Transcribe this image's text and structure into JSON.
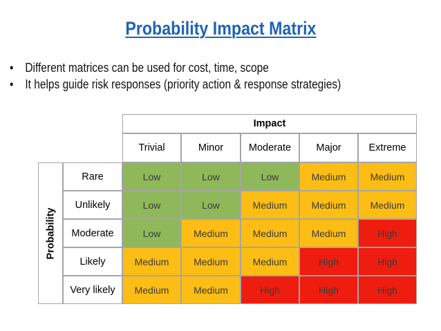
{
  "title": "Probability Impact Matrix",
  "bullets": [
    "Different matrices can be used for cost, time, scope",
    "It helps guide risk responses (priority action & response strategies)"
  ],
  "matrix": {
    "impact_label": "Impact",
    "probability_label": "Probability",
    "impact_levels": [
      "Trivial",
      "Minor",
      "Moderate",
      "Major",
      "Extreme"
    ],
    "probability_levels": [
      "Rare",
      "Unlikely",
      "Moderate",
      "Likely",
      "Very likely"
    ],
    "cells": [
      [
        "Low",
        "Low",
        "Low",
        "Medium",
        "Medium"
      ],
      [
        "Low",
        "Low",
        "Medium",
        "Medium",
        "Medium"
      ],
      [
        "Low",
        "Medium",
        "Medium",
        "Medium",
        "High"
      ],
      [
        "Medium",
        "Medium",
        "Medium",
        "High",
        "High"
      ],
      [
        "Medium",
        "Medium",
        "High",
        "High",
        "High"
      ]
    ],
    "colors": {
      "Low": "#8eb85a",
      "Medium": "#fcbd14",
      "High": "#ee1d0f"
    }
  }
}
